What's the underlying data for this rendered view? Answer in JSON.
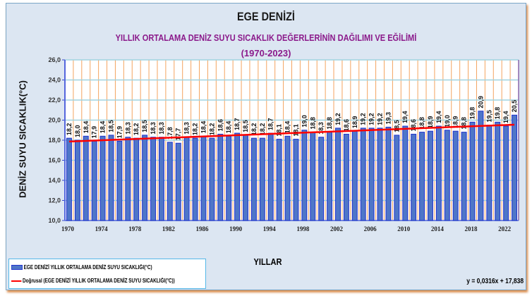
{
  "chart_data": {
    "type": "bar",
    "title": "EGE DENİZİ",
    "subtitle": "YILLIK ORTALAMA DENİZ SUYU SICAKLIK DEĞERLERİNİN  DAĞILIMI VE EĞİLİMİ",
    "period": "(1970-2023)",
    "xlabel": "YILLAR",
    "ylabel": "DENİZ SUYU  SICAKLIK(°C)",
    "ylim": [
      10,
      26
    ],
    "yticks": [
      "10,0",
      "12,0",
      "14,0",
      "16,0",
      "18,0",
      "20,0",
      "22,0",
      "24,0",
      "26,0"
    ],
    "x": [
      1970,
      1971,
      1972,
      1973,
      1974,
      1975,
      1976,
      1977,
      1978,
      1979,
      1980,
      1981,
      1982,
      1983,
      1984,
      1985,
      1986,
      1987,
      1988,
      1989,
      1990,
      1991,
      1992,
      1993,
      1994,
      1995,
      1996,
      1997,
      1998,
      1999,
      2000,
      2001,
      2002,
      2003,
      2004,
      2005,
      2006,
      2007,
      2008,
      2009,
      2010,
      2011,
      2012,
      2013,
      2014,
      2015,
      2016,
      2017,
      2018,
      2019,
      2020,
      2021,
      2022,
      2023
    ],
    "xticks": [
      "1970",
      "1974",
      "1978",
      "1982",
      "1986",
      "1990",
      "1994",
      "1998",
      "2002",
      "2006",
      "2010",
      "2014",
      "2018",
      "2022"
    ],
    "values": [
      18.2,
      18.0,
      18.4,
      17.9,
      18.4,
      18.5,
      17.9,
      18.3,
      18.2,
      18.5,
      18.3,
      18.3,
      17.8,
      17.7,
      18.3,
      18.2,
      18.4,
      18.2,
      18.6,
      18.4,
      18.7,
      18.5,
      18.2,
      18.2,
      18.7,
      18.1,
      18.4,
      18.1,
      19.0,
      18.8,
      18.3,
      18.8,
      19.2,
      18.6,
      18.9,
      19.2,
      19.2,
      19.2,
      19.3,
      18.5,
      19.4,
      18.6,
      18.8,
      18.9,
      19.4,
      19.0,
      18.9,
      18.8,
      19.8,
      20.9,
      19.5,
      19.8,
      19.4,
      20.5
    ],
    "trend": {
      "slope": 0.0316,
      "intercept": 17.838,
      "equation": "y = 0,0316x + 17,838"
    },
    "legend": {
      "bar": "EGE DENİZİ YILLIK ORTALAMA DENİZ SUYU SICAKLIĞI(°C)",
      "line": "Doğrusal (EGE DENİZİ YILLIK ORTALAMA DENİZ SUYU SICAKLIĞI(°C))",
      "placement": "bottom-left"
    },
    "colors": {
      "bar": "#4f76c8",
      "bar_edge": "#2233cc",
      "trend": "#ff0000",
      "vgrid": "#f4a460",
      "hgrid": "#9fd3e0"
    }
  }
}
